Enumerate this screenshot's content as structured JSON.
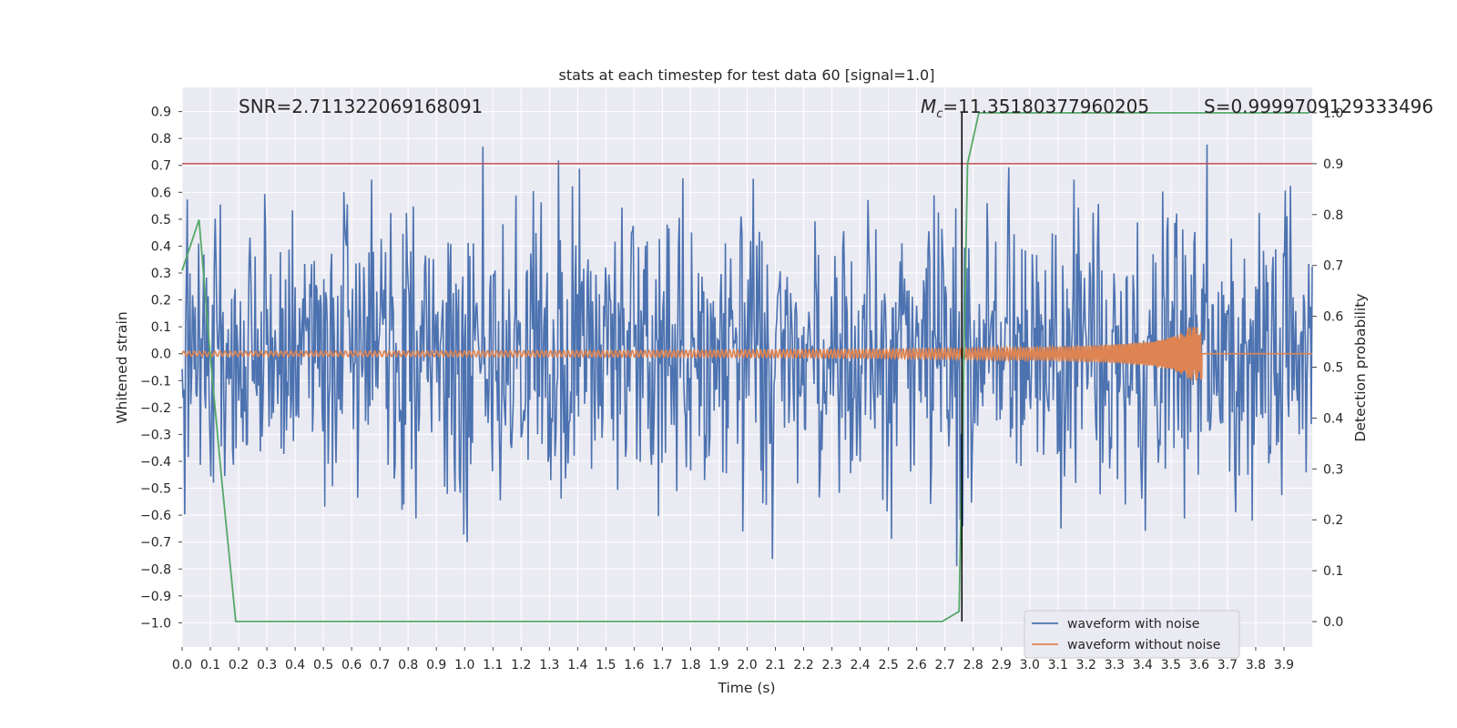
{
  "chart_data": {
    "type": "line",
    "title": "stats at each timestep for test data 60 [signal=1.0]",
    "xlabel": "Time (s)",
    "ylabel": "Whitened strain",
    "y2label": "Detection probability",
    "xlim": [
      0.0,
      4.0
    ],
    "ylim": [
      -1.09,
      0.99
    ],
    "y2lim": [
      -0.05,
      1.05
    ],
    "x_ticks": [
      "0.0",
      "0.1",
      "0.2",
      "0.3",
      "0.4",
      "0.5",
      "0.6",
      "0.7",
      "0.8",
      "0.9",
      "1.0",
      "1.1",
      "1.2",
      "1.3",
      "1.4",
      "1.5",
      "1.6",
      "1.7",
      "1.8",
      "1.9",
      "2.0",
      "2.1",
      "2.2",
      "2.3",
      "2.4",
      "2.5",
      "2.6",
      "2.7",
      "2.8",
      "2.9",
      "3.0",
      "3.1",
      "3.2",
      "3.3",
      "3.4",
      "3.5",
      "3.6",
      "3.7",
      "3.8",
      "3.9"
    ],
    "y_ticks": [
      "0.9",
      "0.8",
      "0.7",
      "0.6",
      "0.5",
      "0.4",
      "0.3",
      "0.2",
      "0.1",
      "0.0",
      "−0.1",
      "−0.2",
      "−0.3",
      "−0.4",
      "−0.5",
      "−0.6",
      "−0.7",
      "−0.8",
      "−0.9",
      "−1.0"
    ],
    "y2_ticks": [
      "1.0",
      "0.9",
      "0.8",
      "0.7",
      "0.6",
      "0.5",
      "0.4",
      "0.3",
      "0.2",
      "0.1",
      "0.0"
    ],
    "grid": true,
    "legend_position": "bottom-right",
    "annotations": {
      "snr": "SNR=2.711322069168091",
      "mc_symbol": "M",
      "mc_sub": "c",
      "mc_value": "=11.35180377960205",
      "s": "S=0.9999709129333496"
    },
    "threshold_prob": 0.9,
    "merger_time": 2.76,
    "series": [
      {
        "name": "waveform with noise",
        "color": "#4c72b0",
        "description_amplitude": "noise peaks roughly between -0.85 and 0.88"
      },
      {
        "name": "waveform without noise",
        "color": "#dd8452",
        "chirp_end_time": 3.61,
        "chirp_peak_amplitude": 0.1
      },
      {
        "color": "#55a868",
        "axis": "right",
        "x": [
          0.0,
          0.06,
          0.1,
          0.14,
          0.19,
          0.25,
          0.5,
          1.0,
          1.5,
          2.0,
          2.5,
          2.69,
          2.75,
          2.78,
          2.82,
          3.0,
          3.5,
          3.99
        ],
        "values": [
          0.69,
          0.79,
          0.52,
          0.28,
          0.0,
          0.0,
          0.0,
          0.0,
          0.0,
          0.0,
          0.0,
          0.0,
          0.02,
          0.9,
          1.0,
          1.0,
          1.0,
          1.0
        ]
      }
    ],
    "colors": {
      "background": "#eaeaf2",
      "grid": "#ffffff",
      "threshold": "#c44e52",
      "merger": "#000000"
    }
  }
}
